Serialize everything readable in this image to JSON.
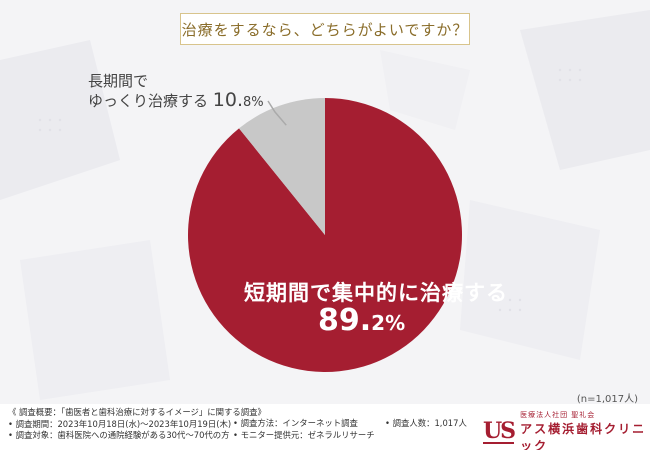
{
  "question": "治療をするなら、どちらがよいですか？",
  "n_label": "(n=1,017人)",
  "chart_data": {
    "type": "pie",
    "title": "治療をするなら、どちらがよいですか？",
    "slices": [
      {
        "label": "短期間で集中的に治療する",
        "value": 89.2,
        "color": "#a51e31"
      },
      {
        "label_line1": "長期間で",
        "label_line2": "ゆっくり治療する",
        "label": "長期間でゆっくり治療する",
        "value": 10.8,
        "color": "#c8c8c8"
      }
    ]
  },
  "labels": {
    "short_text": "短期間で集中的に治療する",
    "short_pct_int": "89.",
    "short_pct_dec": "2%",
    "long_line1": "長期間で",
    "long_line2": "ゆっくり治療する",
    "long_pct_int": "10.",
    "long_pct_dec": "8%"
  },
  "footer": {
    "overview": "《 調査概要：「歯医者と歯科治療に対するイメージ」に関する調査》",
    "period": "• 調査期間：2023年10月18日(水)〜2023年10月19日(木)",
    "target": "• 調査対象：歯科医院への通院経験がある30代〜70代の方",
    "method": "• 調査方法：インターネット調査",
    "provider": "• モニター提供元：ゼネラルリサーチ",
    "count": "• 調査人数：1,017人"
  },
  "logo": {
    "mark": "US",
    "sub": "医療法人社団 聖礼会",
    "name": "アス横浜歯科クリニック"
  }
}
